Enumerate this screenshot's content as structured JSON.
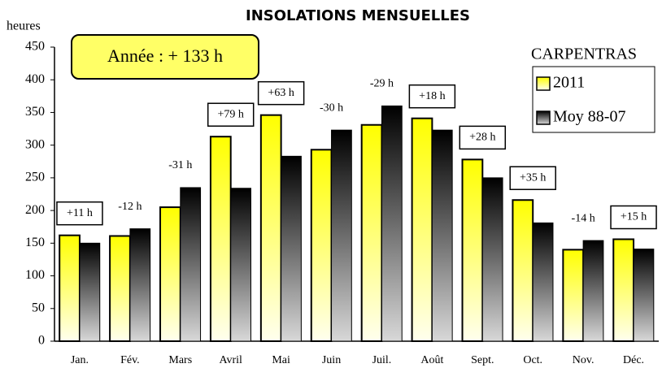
{
  "chart_data": {
    "type": "bar",
    "title": "INSOLATIONS MENSUELLES",
    "y_label": "heures",
    "annotation": "Année : + 133 h",
    "legend_title": "CARPENTRAS",
    "categories": [
      "Jan.",
      "Fév.",
      "Mars",
      "Avril",
      "Mai",
      "Juin",
      "Juil.",
      "Août",
      "Sept.",
      "Oct.",
      "Nov.",
      "Déc."
    ],
    "series": [
      {
        "name": "2011",
        "color": "#ffff00",
        "values": [
          162,
          161,
          205,
          313,
          346,
          293,
          331,
          341,
          278,
          216,
          140,
          156
        ]
      },
      {
        "name": "Moy 88-07",
        "color": "#000000",
        "values": [
          150,
          172,
          235,
          234,
          283,
          323,
          360,
          323,
          250,
          181,
          154,
          141
        ]
      }
    ],
    "diff_labels": [
      "+11 h",
      "-12 h",
      "-31 h",
      "+79 h",
      "+63 h",
      "-30 h",
      "-29 h",
      "+18 h",
      "+28 h",
      "+35 h",
      "-14 h",
      "+15 h"
    ],
    "ylim": [
      0,
      450
    ],
    "yticks": [
      0,
      50,
      100,
      150,
      200,
      250,
      300,
      350,
      400,
      450
    ],
    "grid": false
  }
}
